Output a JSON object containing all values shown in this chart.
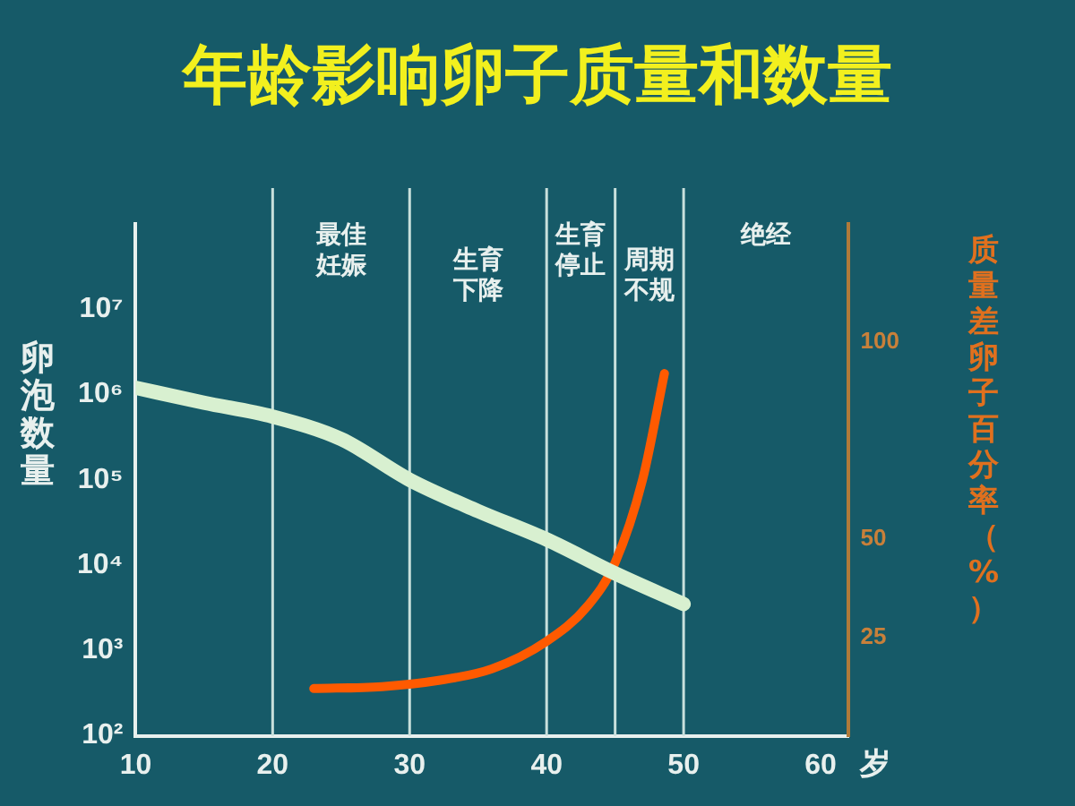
{
  "chart_data": {
    "type": "line",
    "title": "年龄影响卵子质量和数量",
    "ylabel": "卵泡数量",
    "y2label": "质量差卵子百分率（%）",
    "xlabel": "岁",
    "x": [
      10,
      15,
      20,
      25,
      30,
      35,
      40,
      45,
      50
    ],
    "series": [
      {
        "color": "#d8f0d0",
        "values": [
          1200000,
          800000,
          550000,
          300000,
          100000,
          43000,
          20000,
          8000,
          3500
        ],
        "axis": "y"
      },
      {
        "color": "#ff5a00",
        "x": [
          23,
          28,
          32,
          36,
          40,
          43,
          45,
          47,
          48.6
        ],
        "values": [
          12,
          12.5,
          14,
          17,
          24,
          33,
          44,
          65,
          92
        ],
        "axis": "y2"
      }
    ],
    "log": "y",
    "xlim": [
      10,
      62
    ],
    "xticks": [
      10,
      20,
      30,
      40,
      50,
      60
    ],
    "ylim": [
      100,
      100000000
    ],
    "yticks": [
      {
        "value": 100,
        "label": "10²"
      },
      {
        "value": 1000,
        "label": "10³"
      },
      {
        "value": 10000,
        "label": "10⁴"
      },
      {
        "value": 100000,
        "label": "10⁵"
      },
      {
        "value": 1000000,
        "label": "10⁶"
      },
      {
        "value": 10000000,
        "label": "10⁷"
      }
    ],
    "y2lim": [
      0,
      130
    ],
    "y2ticks": [
      25,
      50,
      100
    ],
    "ref_lines": [
      {
        "axis": "x",
        "value": 20,
        "color": "#c8e0dc"
      },
      {
        "axis": "x",
        "value": 30,
        "color": "#c8e0dc"
      },
      {
        "axis": "x",
        "value": 40,
        "color": "#c8e0dc"
      },
      {
        "axis": "x",
        "value": 45,
        "color": "#c8e0dc"
      },
      {
        "axis": "x",
        "value": 50,
        "color": "#c8e0dc"
      }
    ],
    "annotations": [
      "最佳妊娠",
      "生育下降",
      "生育停止",
      "周期不规",
      "绝经"
    ],
    "grid": false
  }
}
